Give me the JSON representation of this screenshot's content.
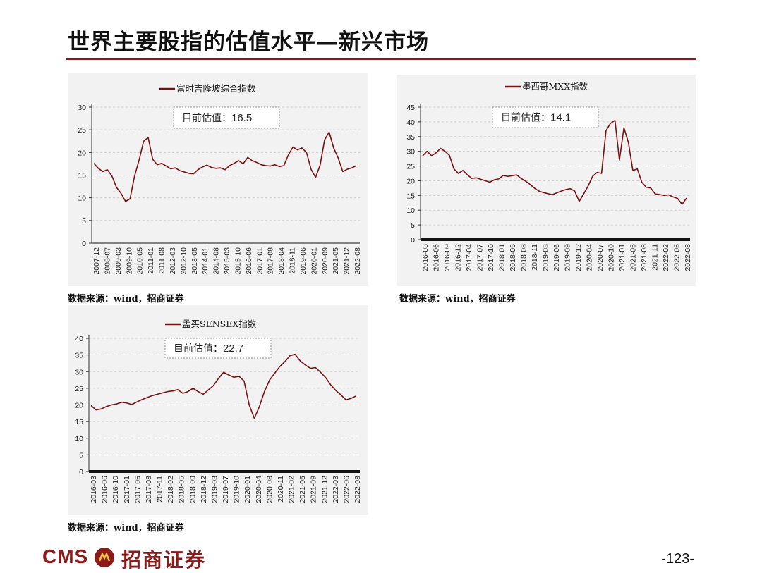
{
  "page": {
    "title": "世界主要股指的估值水平—新兴市场",
    "page_number": "-123-",
    "logo_text": "CMS",
    "logo_cn": "招商证券",
    "brand_color": "#8b1a1a",
    "line_color": "#7a1010"
  },
  "chart_data": [
    {
      "type": "line",
      "legend": "富时吉隆坡综合指数",
      "annotation_label": "目前估值：",
      "annotation_value": "16.5",
      "source": "数据来源：wind，招商证券",
      "ylim": [
        0,
        30
      ],
      "yticks": [
        "0",
        "5",
        "10",
        "15",
        "20",
        "25",
        "30"
      ],
      "xticks": [
        "2007-12",
        "2008-07",
        "2009-03",
        "2009-10",
        "2010-05",
        "2011-01",
        "2011-08",
        "2012-03",
        "2012-10",
        "2013-05",
        "2014-01",
        "2014-08",
        "2015-03",
        "2015-10",
        "2016-06",
        "2017-01",
        "2017-08",
        "2018-04",
        "2018-11",
        "2019-06",
        "2020-01",
        "2020-09",
        "2021-05",
        "2021-12",
        "2022-08"
      ],
      "series": [
        {
          "values": [
            17.6,
            16.5,
            15.8,
            16.2,
            14.8,
            12.3,
            11.0,
            9.2,
            9.8,
            14.8,
            18.3,
            22.5,
            23.3,
            18.5,
            17.3,
            17.6,
            17.0,
            16.4,
            16.6,
            16.0,
            15.7,
            15.4,
            15.3,
            16.2,
            16.8,
            17.2,
            16.7,
            16.5,
            16.6,
            16.2,
            17.1,
            17.6,
            18.2,
            17.5,
            18.9,
            18.2,
            17.8,
            17.3,
            17.1,
            17.0,
            17.3,
            16.9,
            17.1,
            19.5,
            21.2,
            20.6,
            21.0,
            20.0,
            16.3,
            14.5,
            17.2,
            22.8,
            24.5,
            21.0,
            18.8,
            15.8,
            16.3,
            16.6,
            17.1
          ]
        }
      ]
    },
    {
      "type": "line",
      "legend": "墨西哥MXX指数",
      "annotation_label": "目前估值：",
      "annotation_value": "14.1",
      "source": "数据来源：wind，招商证券",
      "ylim": [
        0,
        45
      ],
      "yticks": [
        "0",
        "5",
        "10",
        "15",
        "20",
        "25",
        "30",
        "35",
        "40",
        "45"
      ],
      "xticks": [
        "2016-03",
        "2016-06",
        "2016-09",
        "2016-12",
        "2017-04",
        "2017-07",
        "2017-10",
        "2018-01",
        "2018-05",
        "2018-08",
        "2018-11",
        "2019-03",
        "2019-06",
        "2019-09",
        "2019-12",
        "2020-04",
        "2020-07",
        "2020-10",
        "2021-01",
        "2021-05",
        "2021-08",
        "2021-11",
        "2022-02",
        "2022-05",
        "2022-08"
      ],
      "series": [
        {
          "values": [
            28.5,
            30.0,
            28.5,
            29.5,
            31.0,
            30.0,
            28.6,
            24.0,
            22.5,
            23.5,
            22.0,
            20.8,
            21.0,
            20.5,
            20.0,
            19.5,
            20.3,
            20.6,
            21.8,
            21.5,
            21.7,
            22.0,
            20.8,
            19.9,
            18.8,
            17.5,
            16.5,
            16.0,
            15.6,
            15.3,
            15.9,
            16.5,
            17.0,
            17.3,
            16.5,
            13.0,
            15.5,
            18.2,
            21.5,
            22.8,
            22.5,
            37.0,
            39.5,
            40.5,
            27.0,
            38.0,
            33.0,
            23.5,
            24.0,
            19.5,
            17.8,
            17.5,
            15.5,
            15.3,
            15.0,
            15.2,
            14.5,
            14.0,
            12.0,
            14.1
          ]
        }
      ]
    },
    {
      "type": "line",
      "legend": "孟买SENSEX指数",
      "annotation_label": "目前估值：",
      "annotation_value": "22.7",
      "source": "数据来源：wind，招商证券",
      "ylim": [
        0,
        40
      ],
      "yticks": [
        "0",
        "5",
        "10",
        "15",
        "20",
        "25",
        "30",
        "35",
        "40"
      ],
      "xticks": [
        "2016-03",
        "2016-06",
        "2016-10",
        "2017-01",
        "2017-05",
        "2017-08",
        "2017-11",
        "2018-02",
        "2018-05",
        "2018-09",
        "2018-12",
        "2019-03",
        "2019-07",
        "2019-10",
        "2020-01",
        "2020-04",
        "2020-08",
        "2020-11",
        "2021-02",
        "2021-05",
        "2021-09",
        "2021-12",
        "2022-03",
        "2022-06",
        "2022-08"
      ],
      "series": [
        {
          "values": [
            19.8,
            18.5,
            18.8,
            19.5,
            20.0,
            20.3,
            20.8,
            20.6,
            20.1,
            20.9,
            21.6,
            22.2,
            22.8,
            23.2,
            23.6,
            24.0,
            24.2,
            24.6,
            23.5,
            24.0,
            25.0,
            24.0,
            23.2,
            24.5,
            25.8,
            28.0,
            29.8,
            29.0,
            28.3,
            28.6,
            27.2,
            20.0,
            16.0,
            19.5,
            24.0,
            27.5,
            29.5,
            31.5,
            33.0,
            34.8,
            35.2,
            33.2,
            32.0,
            31.0,
            31.2,
            29.8,
            28.2,
            26.0,
            24.3,
            23.0,
            21.5,
            22.0,
            22.7
          ]
        }
      ]
    }
  ]
}
